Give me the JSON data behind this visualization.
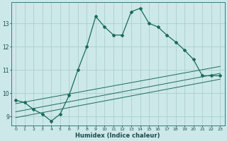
{
  "xlabel": "Humidex (Indice chaleur)",
  "background_color": "#cce8e8",
  "grid_color": "#aacfcf",
  "line_color": "#1a6b5a",
  "xlim": [
    -0.5,
    23.5
  ],
  "ylim": [
    8.6,
    13.9
  ],
  "yticks": [
    9,
    10,
    11,
    12,
    13
  ],
  "xticks": [
    0,
    1,
    2,
    3,
    4,
    5,
    6,
    7,
    8,
    9,
    10,
    11,
    12,
    13,
    14,
    15,
    16,
    17,
    18,
    19,
    20,
    21,
    22,
    23
  ],
  "series1_x": [
    0,
    1,
    2,
    3,
    4,
    5,
    6,
    7,
    8,
    9,
    10,
    11,
    12,
    13,
    14,
    15,
    16,
    17,
    18,
    19,
    20,
    21,
    22,
    23
  ],
  "series1_y": [
    9.7,
    9.6,
    9.3,
    9.1,
    8.8,
    9.1,
    9.9,
    11.0,
    12.0,
    13.3,
    12.85,
    12.5,
    12.5,
    13.5,
    13.65,
    13.0,
    12.85,
    12.5,
    12.2,
    11.85,
    11.45,
    10.75,
    10.75,
    10.75
  ],
  "reg_lines": [
    {
      "x": [
        0,
        23
      ],
      "y": [
        9.55,
        11.15
      ]
    },
    {
      "x": [
        0,
        23
      ],
      "y": [
        9.2,
        10.85
      ]
    },
    {
      "x": [
        0,
        23
      ],
      "y": [
        8.95,
        10.6
      ]
    }
  ]
}
